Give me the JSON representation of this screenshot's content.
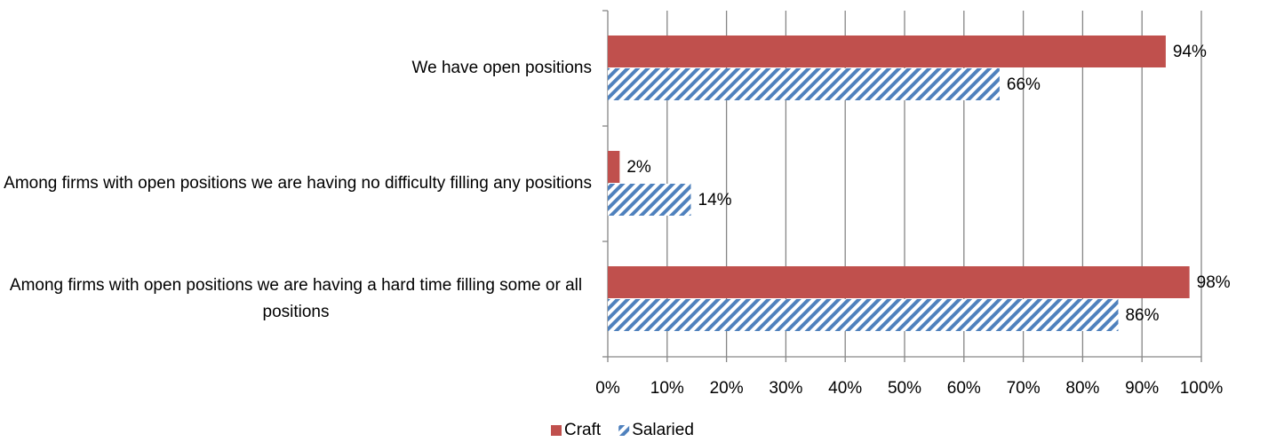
{
  "chart_data": {
    "type": "hbar",
    "categories": [
      "We have open positions",
      "Among firms with open positions we are having no difficulty filling any positions",
      "Among firms with open positions we are having a hard time filling some or all positions"
    ],
    "series": [
      {
        "name": "Craft",
        "color": "#c0504d",
        "values": [
          94,
          2,
          98
        ],
        "value_labels": [
          "94%",
          "2%",
          "98%"
        ]
      },
      {
        "name": "Salaried",
        "color": "#4f81bd",
        "values": [
          66,
          14,
          86
        ],
        "value_labels": [
          "66%",
          "14%",
          "86%"
        ]
      }
    ],
    "xlim": [
      0,
      100
    ],
    "xticks": [
      {
        "value": 0,
        "label": "0%"
      },
      {
        "value": 10,
        "label": "10%"
      },
      {
        "value": 20,
        "label": "20%"
      },
      {
        "value": 30,
        "label": "30%"
      },
      {
        "value": 40,
        "label": "40%"
      },
      {
        "value": 50,
        "label": "50%"
      },
      {
        "value": 60,
        "label": "60%"
      },
      {
        "value": 70,
        "label": "70%"
      },
      {
        "value": 80,
        "label": "80%"
      },
      {
        "value": 90,
        "label": "90%"
      },
      {
        "value": 100,
        "label": "100%"
      }
    ],
    "grid": true,
    "legend": "bottom"
  }
}
